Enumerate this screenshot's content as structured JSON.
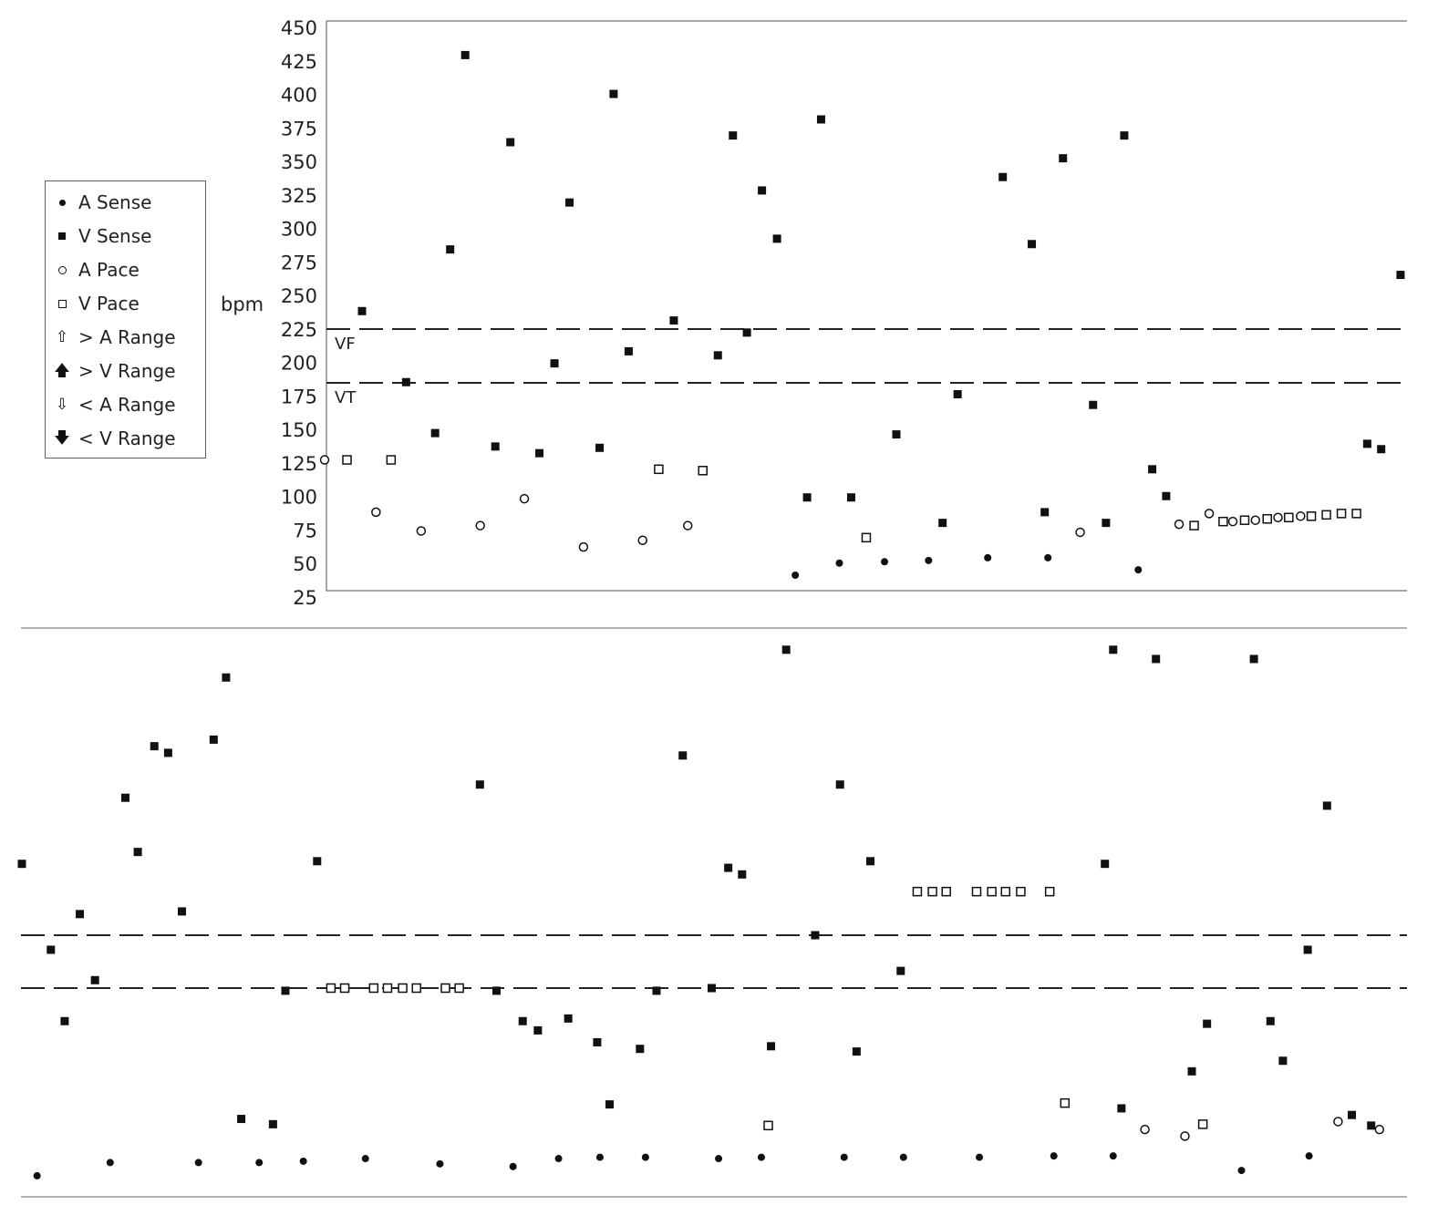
{
  "legend": {
    "items": [
      {
        "label": "A Sense",
        "icon": "filled-dot"
      },
      {
        "label": "V Sense",
        "icon": "filled-square"
      },
      {
        "label": "A Pace",
        "icon": "open-circle"
      },
      {
        "label": "V Pace",
        "icon": "open-square"
      },
      {
        "label": "> A Range",
        "icon": "hollow-up-arrow"
      },
      {
        "label": "> V Range",
        "icon": "filled-up-arrow"
      },
      {
        "label": "< A Range",
        "icon": "hollow-down-arrow"
      },
      {
        "label": "< V Range",
        "icon": "filled-down-arrow"
      }
    ]
  },
  "chart_data": [
    {
      "type": "scatter",
      "panel": "top",
      "ylabel": "bpm",
      "ylim": [
        25,
        450
      ],
      "yticks": [
        450,
        425,
        400,
        375,
        350,
        325,
        300,
        275,
        250,
        225,
        200,
        175,
        150,
        125,
        100,
        75,
        50,
        25
      ],
      "thresholds": [
        {
          "name": "VF",
          "value": 225
        },
        {
          "name": "VT",
          "value": 185
        }
      ],
      "x_units": "beat index (0-100)",
      "series": [
        {
          "name": "A Sense",
          "marker": "filled-dot",
          "points": [
            [
              43.1,
              42
            ],
            [
              47.2,
              51
            ],
            [
              51.4,
              52
            ],
            [
              55.5,
              53
            ],
            [
              61.0,
              55
            ],
            [
              66.6,
              55
            ],
            [
              75.0,
              46
            ]
          ]
        },
        {
          "name": "V Sense",
          "marker": "filled-square",
          "points": [
            [
              2.8,
              239
            ],
            [
              6.9,
              186
            ],
            [
              9.6,
              148
            ],
            [
              11.0,
              285
            ],
            [
              12.4,
              430
            ],
            [
              15.2,
              138
            ],
            [
              16.6,
              365
            ],
            [
              19.3,
              133
            ],
            [
              20.7,
              200
            ],
            [
              22.1,
              320
            ],
            [
              24.9,
              137
            ],
            [
              26.2,
              401
            ],
            [
              27.6,
              209
            ],
            [
              31.8,
              232
            ],
            [
              35.9,
              206
            ],
            [
              37.3,
              370
            ],
            [
              38.6,
              223
            ],
            [
              40.0,
              329
            ],
            [
              41.4,
              293
            ],
            [
              44.2,
              100
            ],
            [
              45.5,
              382
            ],
            [
              48.3,
              100
            ],
            [
              52.5,
              147
            ],
            [
              56.8,
              81
            ],
            [
              58.2,
              177
            ],
            [
              62.4,
              339
            ],
            [
              65.1,
              289
            ],
            [
              66.3,
              89
            ],
            [
              68.0,
              353
            ],
            [
              70.8,
              169
            ],
            [
              72.0,
              81
            ],
            [
              73.7,
              370
            ],
            [
              76.3,
              121
            ],
            [
              77.6,
              101
            ],
            [
              96.3,
              140
            ],
            [
              97.6,
              136
            ],
            [
              99.4,
              266
            ]
          ]
        },
        {
          "name": "A Pace",
          "marker": "open-circle",
          "points": [
            [
              0.0,
              128
            ],
            [
              4.1,
              89
            ],
            [
              8.3,
              75
            ],
            [
              13.8,
              79
            ],
            [
              17.9,
              99
            ],
            [
              23.4,
              63
            ],
            [
              28.9,
              68
            ],
            [
              33.1,
              79
            ],
            [
              69.6,
              74
            ],
            [
              78.8,
              80
            ],
            [
              81.6,
              88
            ],
            [
              83.8,
              82
            ],
            [
              85.9,
              83
            ],
            [
              88.0,
              85
            ],
            [
              90.1,
              86
            ]
          ]
        },
        {
          "name": "V Pace",
          "marker": "open-square",
          "points": [
            [
              1.4,
              128
            ],
            [
              5.5,
              128
            ],
            [
              30.4,
              121
            ],
            [
              34.5,
              120
            ],
            [
              49.7,
              70
            ],
            [
              80.2,
              79
            ],
            [
              82.9,
              82
            ],
            [
              84.9,
              83
            ],
            [
              87.0,
              84
            ],
            [
              89.0,
              85
            ],
            [
              91.1,
              86
            ],
            [
              92.5,
              87
            ],
            [
              93.9,
              88
            ],
            [
              95.3,
              88
            ]
          ]
        }
      ]
    },
    {
      "type": "scatter",
      "panel": "bottom",
      "thresholds": [
        {
          "name": "VF",
          "value": 225
        },
        {
          "name": "VT",
          "value": 185
        }
      ],
      "x_units": "beat index (0-100)",
      "series": [
        {
          "name": "A Sense",
          "marker": "filled-dot",
          "points": [
            [
              1.1,
              43
            ],
            [
              6.4,
              53
            ],
            [
              12.8,
              53
            ],
            [
              17.2,
              53
            ],
            [
              20.4,
              54
            ],
            [
              24.9,
              56
            ],
            [
              30.3,
              52
            ],
            [
              35.6,
              50
            ],
            [
              38.9,
              56
            ],
            [
              41.9,
              57
            ],
            [
              45.2,
              57
            ],
            [
              50.5,
              56
            ],
            [
              53.6,
              57
            ],
            [
              59.6,
              57
            ],
            [
              63.9,
              57
            ],
            [
              69.4,
              57
            ],
            [
              74.8,
              58
            ],
            [
              79.1,
              58
            ],
            [
              88.4,
              47
            ],
            [
              93.3,
              58
            ]
          ]
        },
        {
          "name": "V Sense",
          "marker": "filled-square",
          "points": [
            [
              0.0,
              279
            ],
            [
              2.1,
              214
            ],
            [
              3.1,
              160
            ],
            [
              4.2,
              241
            ],
            [
              5.3,
              191
            ],
            [
              7.5,
              329
            ],
            [
              8.4,
              288
            ],
            [
              9.6,
              368
            ],
            [
              10.6,
              363
            ],
            [
              11.6,
              243
            ],
            [
              13.9,
              373
            ],
            [
              14.8,
              420
            ],
            [
              15.9,
              86
            ],
            [
              18.2,
              82
            ],
            [
              19.1,
              183
            ],
            [
              21.4,
              281
            ],
            [
              33.2,
              339
            ],
            [
              34.4,
              183
            ],
            [
              36.3,
              160
            ],
            [
              37.4,
              153
            ],
            [
              39.6,
              162
            ],
            [
              41.7,
              144
            ],
            [
              42.6,
              97
            ],
            [
              44.8,
              139
            ],
            [
              46.0,
              183
            ],
            [
              47.9,
              361
            ],
            [
              50.0,
              185
            ],
            [
              51.2,
              276
            ],
            [
              52.2,
              271
            ],
            [
              54.3,
              141
            ],
            [
              55.4,
              441
            ],
            [
              57.5,
              225
            ],
            [
              59.3,
              339
            ],
            [
              60.5,
              137
            ],
            [
              61.5,
              281
            ],
            [
              63.7,
              198
            ],
            [
              78.5,
              279
            ],
            [
              79.7,
              94
            ],
            [
              79.1,
              441
            ],
            [
              82.2,
              434
            ],
            [
              84.8,
              122
            ],
            [
              85.9,
              158
            ],
            [
              89.3,
              434
            ],
            [
              90.5,
              160
            ],
            [
              91.4,
              130
            ],
            [
              93.2,
              214
            ],
            [
              94.6,
              323
            ],
            [
              96.4,
              89
            ],
            [
              97.8,
              81
            ]
          ]
        },
        {
          "name": "A Pace",
          "marker": "open-circle",
          "points": [
            [
              81.4,
              78
            ],
            [
              84.3,
              73
            ],
            [
              95.4,
              84
            ],
            [
              98.4,
              78
            ]
          ]
        },
        {
          "name": "V Pace",
          "marker": "open-square",
          "points": [
            [
              22.4,
              185
            ],
            [
              23.4,
              185
            ],
            [
              25.5,
              185
            ],
            [
              26.5,
              185
            ],
            [
              27.6,
              185
            ],
            [
              28.6,
              185
            ],
            [
              30.7,
              185
            ],
            [
              31.7,
              185
            ],
            [
              54.1,
              81
            ],
            [
              64.9,
              258
            ],
            [
              66.0,
              258
            ],
            [
              67.0,
              258
            ],
            [
              69.2,
              258
            ],
            [
              70.3,
              258
            ],
            [
              71.3,
              258
            ],
            [
              72.4,
              258
            ],
            [
              74.5,
              258
            ],
            [
              75.6,
              98
            ],
            [
              85.6,
              82
            ]
          ]
        }
      ]
    }
  ]
}
